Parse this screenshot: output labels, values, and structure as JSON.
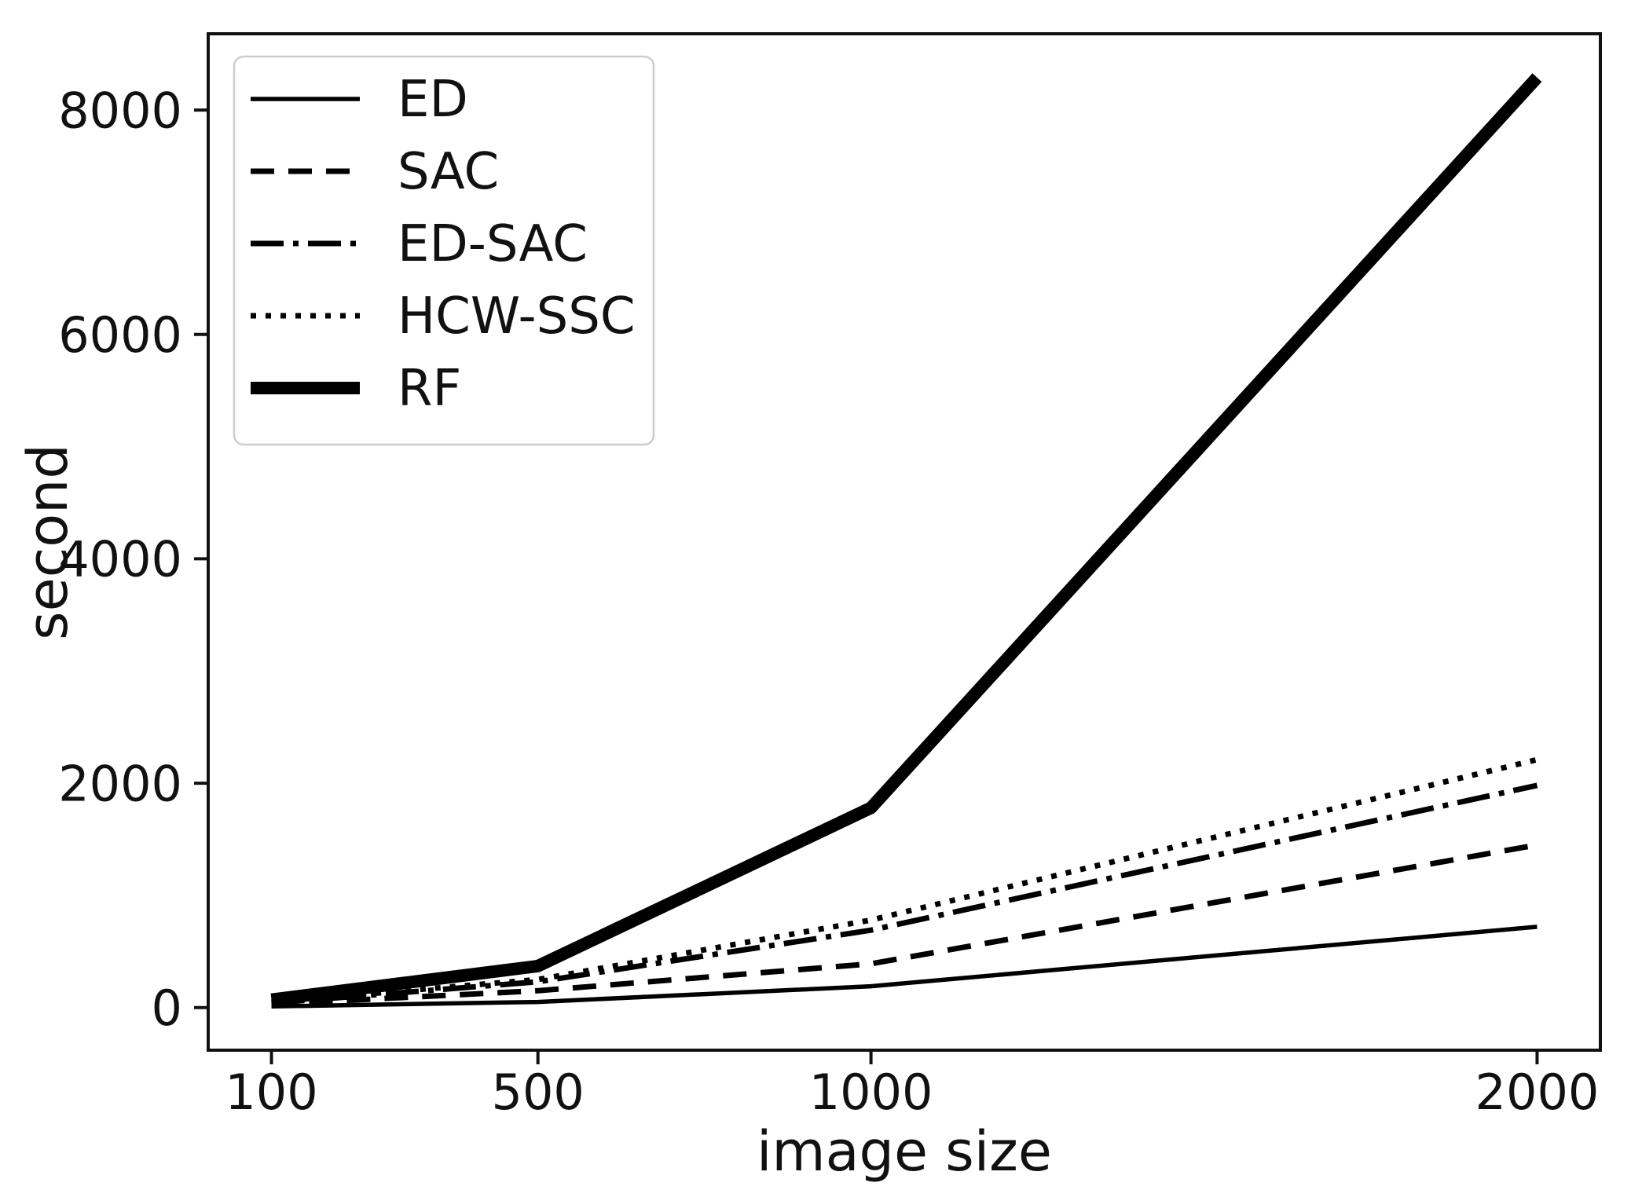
{
  "figure": {
    "background": "#ffffff",
    "ink_color": "#111111",
    "legend_border_color": "#cccccc"
  },
  "chart_data": {
    "type": "line",
    "title": "",
    "xlabel": "image size",
    "ylabel": "second",
    "x": [
      100,
      500,
      1000,
      2000
    ],
    "xticks": [
      100,
      500,
      1000,
      2000
    ],
    "xtick_labels": [
      "100",
      "500",
      "1000",
      "2000"
    ],
    "yticks": [
      0,
      2000,
      4000,
      6000,
      8000
    ],
    "ytick_labels": [
      "0",
      "2000",
      "4000",
      "6000",
      "8000"
    ],
    "xlim": [
      5,
      2095
    ],
    "ylim": [
      -380,
      8680
    ],
    "grid": false,
    "legend_position": "upper-left",
    "legend_frame": true,
    "series": [
      {
        "name": "ED",
        "linestyle": "solid",
        "linewidth": 5.5,
        "color": "#000000",
        "values": [
          10,
          50,
          190,
          720
        ]
      },
      {
        "name": "SAC",
        "linestyle": "dashed",
        "linewidth": 7,
        "color": "#000000",
        "values": [
          30,
          150,
          390,
          1450
        ]
      },
      {
        "name": "ED-SAC",
        "linestyle": "dashdot",
        "linewidth": 7,
        "color": "#000000",
        "values": [
          40,
          230,
          690,
          1980
        ]
      },
      {
        "name": "HCW-SSC",
        "linestyle": "dotted",
        "linewidth": 7,
        "color": "#000000",
        "values": [
          50,
          250,
          780,
          2210
        ]
      },
      {
        "name": "RF",
        "linestyle": "solid",
        "linewidth": 16,
        "color": "#000000",
        "values": [
          70,
          370,
          1780,
          8290
        ]
      }
    ]
  }
}
